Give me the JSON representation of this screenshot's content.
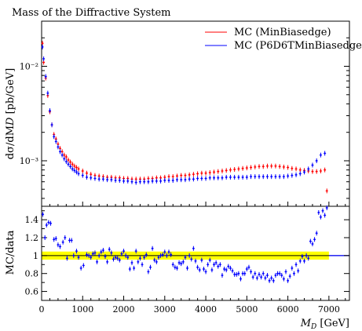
{
  "chart_data": {
    "type": "scatter",
    "title": "Mass of the Diffractive System",
    "main": {
      "ylabel": "dσ/dM_D [pb/GeV]",
      "yscale": "log",
      "ylim": [
        0.00033,
        0.03
      ],
      "ytick_labels": [
        "10⁻³",
        "10⁻²"
      ],
      "ytick_values": [
        0.001,
        0.01
      ]
    },
    "ratio": {
      "ylabel": "MC/data",
      "ylim": [
        0.5,
        1.55
      ],
      "ytick_values": [
        0.6,
        0.8,
        1.0,
        1.2,
        1.4
      ],
      "ytick_labels": [
        "0.6",
        "0.8",
        "1",
        "1.2",
        "1.4"
      ],
      "band": {
        "low": 0.955,
        "high": 1.045,
        "xmax": 7000,
        "color": "#ffff00"
      }
    },
    "x": {
      "label": "M_D [GeV]",
      "range": [
        0,
        7500
      ],
      "tick_values": [
        0,
        1000,
        2000,
        3000,
        4000,
        5000,
        6000,
        7000
      ],
      "tick_labels": [
        "0",
        "1000",
        "2000",
        "3000",
        "4000",
        "5000",
        "6000",
        "7000"
      ]
    },
    "legend": {
      "position": "top-right"
    },
    "series": [
      {
        "name": "MC (MinBiasedge)",
        "color": "#ff0000",
        "main_points": [
          [
            20,
            0.0175
          ],
          [
            50,
            0.011
          ],
          [
            100,
            0.0075
          ],
          [
            150,
            0.0049
          ],
          [
            200,
            0.0033
          ],
          [
            250,
            0.0024
          ],
          [
            300,
            0.0019
          ],
          [
            350,
            0.0017
          ],
          [
            400,
            0.0015
          ],
          [
            450,
            0.00135
          ],
          [
            500,
            0.00125
          ],
          [
            550,
            0.00115
          ],
          [
            600,
            0.0011
          ],
          [
            650,
            0.00102
          ],
          [
            700,
            0.00097
          ],
          [
            750,
            0.00092
          ],
          [
            800,
            0.00088
          ],
          [
            850,
            0.00085
          ],
          [
            900,
            0.00082
          ],
          [
            1000,
            0.00078
          ],
          [
            1100,
            0.00074
          ],
          [
            1200,
            0.00072
          ],
          [
            1300,
            0.0007
          ],
          [
            1400,
            0.00069
          ],
          [
            1500,
            0.00068
          ],
          [
            1600,
            0.00067
          ],
          [
            1700,
            0.00067
          ],
          [
            1800,
            0.00066
          ],
          [
            1900,
            0.00066
          ],
          [
            2000,
            0.00065
          ],
          [
            2100,
            0.00065
          ],
          [
            2200,
            0.00064
          ],
          [
            2300,
            0.00064
          ],
          [
            2400,
            0.00064
          ],
          [
            2500,
            0.00064
          ],
          [
            2600,
            0.00065
          ],
          [
            2700,
            0.00065
          ],
          [
            2800,
            0.00066
          ],
          [
            2900,
            0.00066
          ],
          [
            3000,
            0.00067
          ],
          [
            3100,
            0.00068
          ],
          [
            3200,
            0.00068
          ],
          [
            3300,
            0.00069
          ],
          [
            3400,
            0.0007
          ],
          [
            3500,
            0.0007
          ],
          [
            3600,
            0.00071
          ],
          [
            3700,
            0.00072
          ],
          [
            3800,
            0.00073
          ],
          [
            3900,
            0.00074
          ],
          [
            4000,
            0.00074
          ],
          [
            4100,
            0.00075
          ],
          [
            4200,
            0.00076
          ],
          [
            4300,
            0.00077
          ],
          [
            4400,
            0.00078
          ],
          [
            4500,
            0.00079
          ],
          [
            4600,
            0.0008
          ],
          [
            4700,
            0.00081
          ],
          [
            4800,
            0.00082
          ],
          [
            4900,
            0.00083
          ],
          [
            5000,
            0.00084
          ],
          [
            5100,
            0.00085
          ],
          [
            5200,
            0.00086
          ],
          [
            5300,
            0.00087
          ],
          [
            5400,
            0.00087
          ],
          [
            5500,
            0.00088
          ],
          [
            5600,
            0.00088
          ],
          [
            5700,
            0.00088
          ],
          [
            5800,
            0.00087
          ],
          [
            5900,
            0.00086
          ],
          [
            6000,
            0.00085
          ],
          [
            6100,
            0.00083
          ],
          [
            6200,
            0.00082
          ],
          [
            6300,
            0.0008
          ],
          [
            6400,
            0.00079
          ],
          [
            6500,
            0.00078
          ],
          [
            6600,
            0.00077
          ],
          [
            6700,
            0.00077
          ],
          [
            6800,
            0.00078
          ],
          [
            6900,
            0.0008
          ],
          [
            6950,
            0.00048
          ]
        ]
      },
      {
        "name": "MC (P6D6TMinBiasedge)",
        "color": "#0000ff",
        "main_points": [
          [
            20,
            0.016
          ],
          [
            50,
            0.012
          ],
          [
            100,
            0.0078
          ],
          [
            150,
            0.0052
          ],
          [
            200,
            0.0034
          ],
          [
            250,
            0.0024
          ],
          [
            300,
            0.0018
          ],
          [
            350,
            0.0016
          ],
          [
            400,
            0.0014
          ],
          [
            450,
            0.00125
          ],
          [
            500,
            0.00115
          ],
          [
            550,
            0.00105
          ],
          [
            600,
            0.00098
          ],
          [
            650,
            0.00092
          ],
          [
            700,
            0.00087
          ],
          [
            750,
            0.00082
          ],
          [
            800,
            0.00079
          ],
          [
            850,
            0.00076
          ],
          [
            900,
            0.00073
          ],
          [
            1000,
            0.0007
          ],
          [
            1100,
            0.00067
          ],
          [
            1200,
            0.00066
          ],
          [
            1300,
            0.00065
          ],
          [
            1400,
            0.00064
          ],
          [
            1500,
            0.00064
          ],
          [
            1600,
            0.00063
          ],
          [
            1700,
            0.00063
          ],
          [
            1800,
            0.00062
          ],
          [
            1900,
            0.00062
          ],
          [
            2000,
            0.00061
          ],
          [
            2100,
            0.00061
          ],
          [
            2200,
            0.0006
          ],
          [
            2300,
            0.00059
          ],
          [
            2400,
            0.0006
          ],
          [
            2500,
            0.0006
          ],
          [
            2600,
            0.0006
          ],
          [
            2700,
            0.00061
          ],
          [
            2800,
            0.00061
          ],
          [
            2900,
            0.00061
          ],
          [
            3000,
            0.00062
          ],
          [
            3100,
            0.00062
          ],
          [
            3200,
            0.00062
          ],
          [
            3300,
            0.00063
          ],
          [
            3400,
            0.00063
          ],
          [
            3500,
            0.00063
          ],
          [
            3600,
            0.00064
          ],
          [
            3700,
            0.00064
          ],
          [
            3800,
            0.00065
          ],
          [
            3900,
            0.00065
          ],
          [
            4000,
            0.00065
          ],
          [
            4100,
            0.00066
          ],
          [
            4200,
            0.00066
          ],
          [
            4300,
            0.00066
          ],
          [
            4400,
            0.00066
          ],
          [
            4500,
            0.00067
          ],
          [
            4600,
            0.00067
          ],
          [
            4700,
            0.00067
          ],
          [
            4800,
            0.00067
          ],
          [
            4900,
            0.00067
          ],
          [
            5000,
            0.00067
          ],
          [
            5100,
            0.00068
          ],
          [
            5200,
            0.00068
          ],
          [
            5300,
            0.00068
          ],
          [
            5400,
            0.00068
          ],
          [
            5500,
            0.00068
          ],
          [
            5600,
            0.00068
          ],
          [
            5700,
            0.00068
          ],
          [
            5800,
            0.00068
          ],
          [
            5900,
            0.00068
          ],
          [
            6000,
            0.00069
          ],
          [
            6100,
            0.0007
          ],
          [
            6200,
            0.00071
          ],
          [
            6300,
            0.00073
          ],
          [
            6400,
            0.00076
          ],
          [
            6500,
            0.00082
          ],
          [
            6600,
            0.0009
          ],
          [
            6700,
            0.001
          ],
          [
            6800,
            0.00115
          ],
          [
            6900,
            0.0012
          ]
        ],
        "ratio_points": [
          [
            30,
            1.46
          ],
          [
            80,
            1.2
          ],
          [
            120,
            1.34
          ],
          [
            170,
            1.37
          ],
          [
            220,
            1.36
          ],
          [
            300,
            1.18
          ],
          [
            350,
            1.19
          ],
          [
            400,
            1.12
          ],
          [
            450,
            1.1
          ],
          [
            520,
            1.15
          ],
          [
            570,
            1.2
          ],
          [
            620,
            0.97
          ],
          [
            680,
            1.17
          ],
          [
            730,
            1.17
          ],
          [
            780,
            1.0
          ],
          [
            850,
            1.05
          ],
          [
            900,
            0.98
          ],
          [
            960,
            0.86
          ],
          [
            1020,
            0.89
          ],
          [
            1100,
            1.01
          ],
          [
            1150,
            1.0
          ],
          [
            1200,
            0.98
          ],
          [
            1250,
            1.02
          ],
          [
            1300,
            1.03
          ],
          [
            1350,
            0.93
          ],
          [
            1400,
            1.0
          ],
          [
            1450,
            1.04
          ],
          [
            1500,
            1.06
          ],
          [
            1550,
            0.99
          ],
          [
            1600,
            0.93
          ],
          [
            1650,
            1.07
          ],
          [
            1700,
            1.03
          ],
          [
            1750,
            0.96
          ],
          [
            1800,
            0.98
          ],
          [
            1850,
            0.97
          ],
          [
            1900,
            0.95
          ],
          [
            1950,
            1.02
          ],
          [
            2000,
            1.05
          ],
          [
            2050,
            1.0
          ],
          [
            2100,
            0.98
          ],
          [
            2150,
            0.85
          ],
          [
            2200,
            0.92
          ],
          [
            2250,
            0.86
          ],
          [
            2300,
            1.05
          ],
          [
            2350,
            0.93
          ],
          [
            2400,
            0.97
          ],
          [
            2450,
            0.9
          ],
          [
            2500,
            0.98
          ],
          [
            2550,
            1.01
          ],
          [
            2600,
            0.82
          ],
          [
            2650,
            0.87
          ],
          [
            2700,
            1.08
          ],
          [
            2750,
            0.95
          ],
          [
            2800,
            0.93
          ],
          [
            2850,
            0.98
          ],
          [
            2900,
            1.0
          ],
          [
            2950,
            1.01
          ],
          [
            3000,
            1.04
          ],
          [
            3050,
            1.0
          ],
          [
            3100,
            1.04
          ],
          [
            3150,
            1.01
          ],
          [
            3200,
            0.9
          ],
          [
            3250,
            0.87
          ],
          [
            3300,
            0.86
          ],
          [
            3350,
            0.92
          ],
          [
            3400,
            0.91
          ],
          [
            3450,
            0.93
          ],
          [
            3500,
            0.98
          ],
          [
            3550,
            0.86
          ],
          [
            3600,
            1.0
          ],
          [
            3650,
            0.96
          ],
          [
            3700,
            1.08
          ],
          [
            3750,
            0.94
          ],
          [
            3800,
            0.87
          ],
          [
            3850,
            0.84
          ],
          [
            3900,
            0.95
          ],
          [
            3950,
            0.85
          ],
          [
            4000,
            0.82
          ],
          [
            4050,
            0.9
          ],
          [
            4100,
            0.95
          ],
          [
            4150,
            0.84
          ],
          [
            4200,
            0.9
          ],
          [
            4250,
            0.92
          ],
          [
            4300,
            0.88
          ],
          [
            4350,
            0.9
          ],
          [
            4400,
            0.78
          ],
          [
            4450,
            0.85
          ],
          [
            4500,
            0.84
          ],
          [
            4550,
            0.88
          ],
          [
            4600,
            0.86
          ],
          [
            4650,
            0.83
          ],
          [
            4700,
            0.79
          ],
          [
            4750,
            0.79
          ],
          [
            4800,
            0.8
          ],
          [
            4850,
            0.74
          ],
          [
            4900,
            0.8
          ],
          [
            4950,
            0.8
          ],
          [
            5000,
            0.85
          ],
          [
            5050,
            0.87
          ],
          [
            5100,
            0.82
          ],
          [
            5150,
            0.76
          ],
          [
            5200,
            0.8
          ],
          [
            5250,
            0.75
          ],
          [
            5300,
            0.79
          ],
          [
            5350,
            0.76
          ],
          [
            5400,
            0.8
          ],
          [
            5450,
            0.75
          ],
          [
            5500,
            0.78
          ],
          [
            5550,
            0.72
          ],
          [
            5600,
            0.75
          ],
          [
            5650,
            0.72
          ],
          [
            5700,
            0.78
          ],
          [
            5750,
            0.8
          ],
          [
            5800,
            0.8
          ],
          [
            5850,
            0.78
          ],
          [
            5900,
            0.74
          ],
          [
            5950,
            0.82
          ],
          [
            6000,
            0.72
          ],
          [
            6050,
            0.77
          ],
          [
            6100,
            0.86
          ],
          [
            6150,
            0.8
          ],
          [
            6200,
            0.9
          ],
          [
            6250,
            0.83
          ],
          [
            6300,
            0.94
          ],
          [
            6350,
            0.99
          ],
          [
            6400,
            0.94
          ],
          [
            6450,
            1.0
          ],
          [
            6500,
            0.97
          ],
          [
            6550,
            1.16
          ],
          [
            6600,
            1.13
          ],
          [
            6650,
            1.18
          ],
          [
            6700,
            1.25
          ],
          [
            6750,
            1.48
          ],
          [
            6800,
            1.43
          ],
          [
            6850,
            1.5
          ],
          [
            6900,
            1.45
          ],
          [
            6950,
            1.55
          ]
        ]
      }
    ]
  }
}
